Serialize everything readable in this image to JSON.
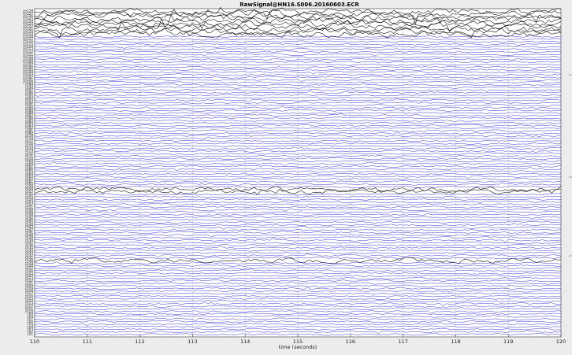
{
  "chart_data": {
    "type": "line",
    "title": "RawSignal@HN16.S006.20160603.ECR",
    "xlabel": "time (seconds)",
    "ylabel": "",
    "xlim": [
      110,
      120
    ],
    "xticks": [
      "110",
      "111",
      "112",
      "113",
      "114",
      "115",
      "116",
      "117",
      "118",
      "119",
      "120"
    ],
    "channel_count": 128,
    "channel_prefix": "ch",
    "grid": true,
    "colors": {
      "trace": "#0000cc",
      "trace_highlight": "#000000",
      "grid": "#9a9a9a",
      "plot_bg": "#ffffff",
      "figure_bg": "#ececec"
    },
    "highlighted_channels": [
      1,
      2,
      3,
      4,
      5,
      6,
      7,
      8,
      9,
      10,
      71,
      72,
      99
    ]
  }
}
